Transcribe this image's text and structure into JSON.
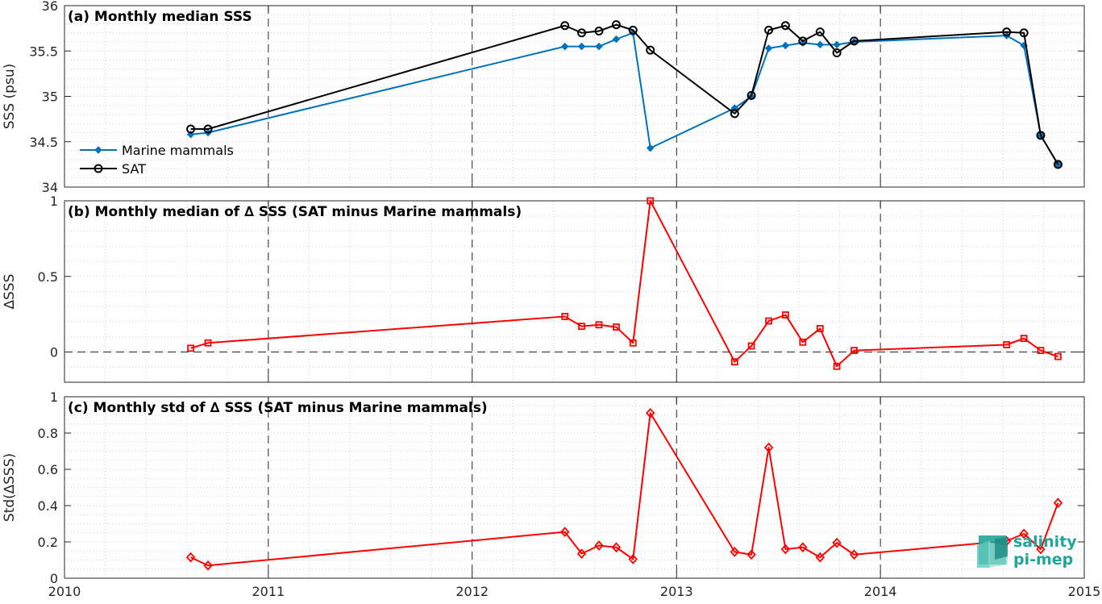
{
  "chart_data": [
    {
      "type": "line",
      "title": "(a) Monthly median SSS",
      "ylabel": "SSS (psu)",
      "xlim": [
        "2010-01-01",
        "2015-01-01"
      ],
      "ylim": [
        34,
        36
      ],
      "yticks": [
        "34",
        "34.5",
        "35",
        "35.5",
        "36"
      ],
      "xticks": [
        "2010",
        "2011",
        "2012",
        "2013",
        "2014",
        "2015"
      ],
      "grid": true,
      "legend_position": "lower-left",
      "series": [
        {
          "name": "Marine mammals",
          "color": "#0072bd",
          "marker": "diamond-filled",
          "points": [
            {
              "x": "2010-08-15",
              "y": 34.58
            },
            {
              "x": "2010-09-15",
              "y": 34.6
            },
            {
              "x": "2012-06-15",
              "y": 35.55
            },
            {
              "x": "2012-07-15",
              "y": 35.55
            },
            {
              "x": "2012-08-15",
              "y": 35.55
            },
            {
              "x": "2012-09-15",
              "y": 35.63
            },
            {
              "x": "2012-10-15",
              "y": 35.7
            },
            {
              "x": "2012-11-15",
              "y": 34.43
            },
            {
              "x": "2013-04-15",
              "y": 34.87
            },
            {
              "x": "2013-05-15",
              "y": 35.0
            },
            {
              "x": "2013-06-15",
              "y": 35.53
            },
            {
              "x": "2013-07-15",
              "y": 35.56
            },
            {
              "x": "2013-08-15",
              "y": 35.59
            },
            {
              "x": "2013-09-15",
              "y": 35.57
            },
            {
              "x": "2013-10-15",
              "y": 35.57
            },
            {
              "x": "2013-11-15",
              "y": 35.6
            },
            {
              "x": "2014-08-15",
              "y": 35.67
            },
            {
              "x": "2014-09-15",
              "y": 35.56
            },
            {
              "x": "2014-10-15",
              "y": 34.57
            },
            {
              "x": "2014-11-15",
              "y": 34.25
            }
          ]
        },
        {
          "name": "SAT",
          "color": "#000000",
          "marker": "circle-open",
          "points": [
            {
              "x": "2010-08-15",
              "y": 34.64
            },
            {
              "x": "2010-09-15",
              "y": 34.64
            },
            {
              "x": "2012-06-15",
              "y": 35.78
            },
            {
              "x": "2012-07-15",
              "y": 35.7
            },
            {
              "x": "2012-08-15",
              "y": 35.72
            },
            {
              "x": "2012-09-15",
              "y": 35.79
            },
            {
              "x": "2012-10-15",
              "y": 35.73
            },
            {
              "x": "2012-11-15",
              "y": 35.51
            },
            {
              "x": "2013-04-15",
              "y": 34.81
            },
            {
              "x": "2013-05-15",
              "y": 35.01
            },
            {
              "x": "2013-06-15",
              "y": 35.73
            },
            {
              "x": "2013-07-15",
              "y": 35.78
            },
            {
              "x": "2013-08-15",
              "y": 35.61
            },
            {
              "x": "2013-09-15",
              "y": 35.71
            },
            {
              "x": "2013-10-15",
              "y": 35.48
            },
            {
              "x": "2013-11-15",
              "y": 35.61
            },
            {
              "x": "2014-08-15",
              "y": 35.71
            },
            {
              "x": "2014-09-15",
              "y": 35.7
            },
            {
              "x": "2014-10-15",
              "y": 34.57
            },
            {
              "x": "2014-11-15",
              "y": 34.25
            }
          ]
        }
      ]
    },
    {
      "type": "line",
      "title": "(b) Monthly median of ∆ SSS (SAT minus Marine mammals)",
      "ylabel": "∆SSS",
      "xlim": [
        "2010-01-01",
        "2015-01-01"
      ],
      "ylim": [
        -0.2,
        1
      ],
      "yticks": [
        "0",
        "0.5",
        "1"
      ],
      "xticks": [
        "2010",
        "2011",
        "2012",
        "2013",
        "2014",
        "2015"
      ],
      "grid": true,
      "reference_line": 0,
      "series": [
        {
          "color": "#ff0000",
          "marker": "square-open",
          "points": [
            {
              "x": "2010-08-15",
              "y": 0.025
            },
            {
              "x": "2010-09-15",
              "y": 0.06
            },
            {
              "x": "2012-06-15",
              "y": 0.235
            },
            {
              "x": "2012-07-15",
              "y": 0.17
            },
            {
              "x": "2012-08-15",
              "y": 0.18
            },
            {
              "x": "2012-09-15",
              "y": 0.165
            },
            {
              "x": "2012-10-15",
              "y": 0.06
            },
            {
              "x": "2012-11-15",
              "y": 1.0
            },
            {
              "x": "2013-04-15",
              "y": -0.065
            },
            {
              "x": "2013-05-15",
              "y": 0.04
            },
            {
              "x": "2013-06-15",
              "y": 0.205
            },
            {
              "x": "2013-07-15",
              "y": 0.245
            },
            {
              "x": "2013-08-15",
              "y": 0.065
            },
            {
              "x": "2013-09-15",
              "y": 0.155
            },
            {
              "x": "2013-10-15",
              "y": -0.095
            },
            {
              "x": "2013-11-15",
              "y": 0.01
            },
            {
              "x": "2014-08-15",
              "y": 0.048
            },
            {
              "x": "2014-09-15",
              "y": 0.09
            },
            {
              "x": "2014-10-15",
              "y": 0.01
            },
            {
              "x": "2014-11-15",
              "y": -0.03
            }
          ]
        }
      ]
    },
    {
      "type": "line",
      "title": "(c) Monthly std of ∆ SSS (SAT minus Marine mammals)",
      "ylabel": "Std(∆SSS)",
      "xlim": [
        "2010-01-01",
        "2015-01-01"
      ],
      "ylim": [
        0,
        1
      ],
      "yticks": [
        "0",
        "0.2",
        "0.4",
        "0.6",
        "0.8",
        "1"
      ],
      "xticks": [
        "2010",
        "2011",
        "2012",
        "2013",
        "2014",
        "2015"
      ],
      "grid": true,
      "series": [
        {
          "color": "#ff0000",
          "marker": "diamond-open",
          "points": [
            {
              "x": "2010-08-15",
              "y": 0.115
            },
            {
              "x": "2010-09-15",
              "y": 0.07
            },
            {
              "x": "2012-06-15",
              "y": 0.255
            },
            {
              "x": "2012-07-15",
              "y": 0.135
            },
            {
              "x": "2012-08-15",
              "y": 0.18
            },
            {
              "x": "2012-09-15",
              "y": 0.17
            },
            {
              "x": "2012-10-15",
              "y": 0.105
            },
            {
              "x": "2012-11-15",
              "y": 0.91
            },
            {
              "x": "2013-04-15",
              "y": 0.145
            },
            {
              "x": "2013-05-15",
              "y": 0.13
            },
            {
              "x": "2013-06-15",
              "y": 0.72
            },
            {
              "x": "2013-07-15",
              "y": 0.16
            },
            {
              "x": "2013-08-15",
              "y": 0.17
            },
            {
              "x": "2013-09-15",
              "y": 0.115
            },
            {
              "x": "2013-10-15",
              "y": 0.195
            },
            {
              "x": "2013-11-15",
              "y": 0.13
            },
            {
              "x": "2014-08-15",
              "y": 0.205
            },
            {
              "x": "2014-09-15",
              "y": 0.245
            },
            {
              "x": "2014-10-15",
              "y": 0.16
            },
            {
              "x": "2014-11-15",
              "y": 0.415
            }
          ]
        }
      ]
    }
  ],
  "logo": {
    "line1": "salinity",
    "line2": "pi-mep",
    "color": "#23a39a"
  }
}
